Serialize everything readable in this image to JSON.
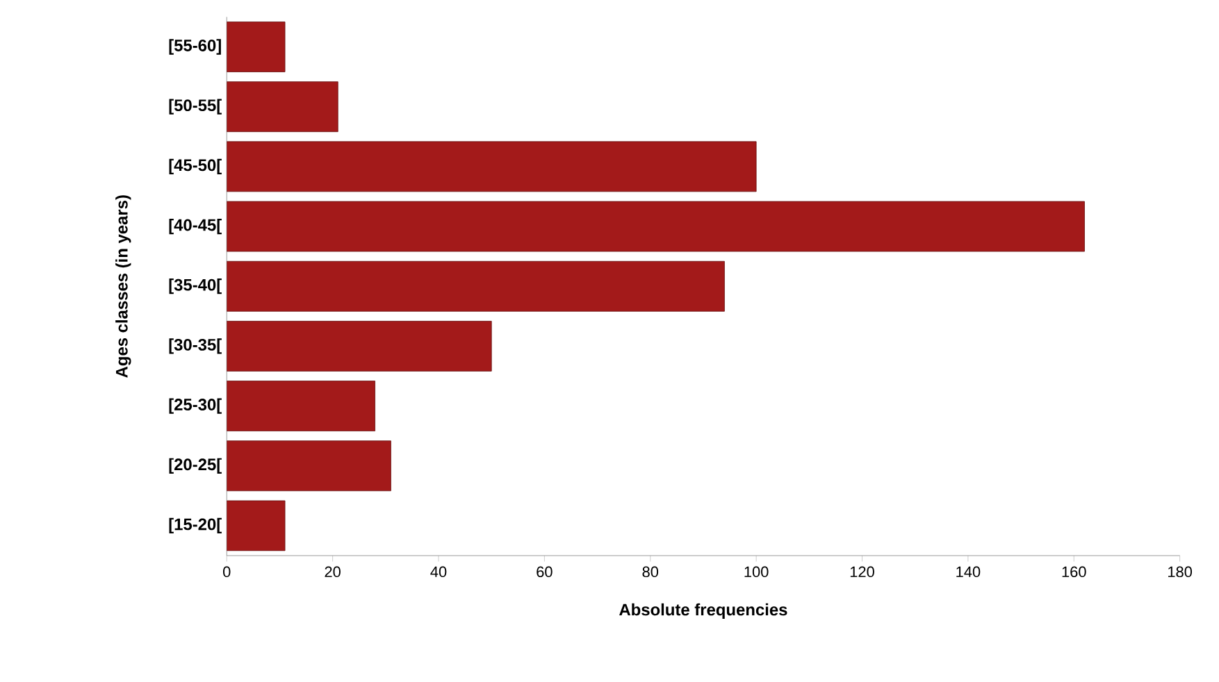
{
  "chart_data": {
    "type": "bar",
    "orientation": "horizontal",
    "xlabel": "Absolute frequencies",
    "ylabel": "Ages classes (in years)",
    "categories": [
      "[55-60]",
      "[50-55[",
      "[45-50[",
      "[40-45[",
      "[35-40[",
      "[30-35[",
      "[25-30[",
      "[20-25[",
      "[15-20["
    ],
    "values": [
      11,
      21,
      100,
      162,
      94,
      50,
      28,
      31,
      11
    ],
    "color": "#a31a1a",
    "xlim": [
      0,
      180
    ],
    "xticks": [
      0,
      20,
      40,
      60,
      80,
      100,
      120,
      140,
      160,
      180
    ],
    "grid": false
  }
}
